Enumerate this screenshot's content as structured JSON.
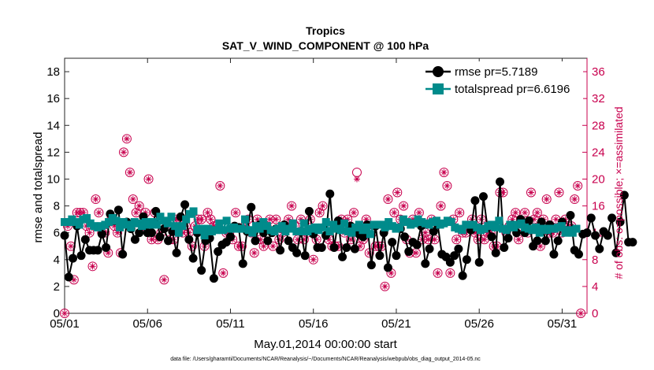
{
  "chart_data": {
    "type": "line",
    "title": "Tropics",
    "subtitle": "SAT_V_WIND_COMPONENT @ 100 hPa",
    "xlabel": "May.01,2014 00:00:00 start",
    "ylabel": "rmse and totalspread",
    "ylabel_right": "# of obs: o=possible; ×=assimilated",
    "xlim": [
      0,
      31.5
    ],
    "ylim": [
      0,
      19
    ],
    "ylim_right": [
      0,
      38
    ],
    "x_ticks": [
      0,
      5,
      10,
      15,
      20,
      25,
      30
    ],
    "x_tick_labels": [
      "05/01",
      "05/06",
      "05/11",
      "05/16",
      "05/21",
      "05/26",
      "05/31"
    ],
    "y_ticks": [
      0,
      2,
      4,
      6,
      8,
      10,
      12,
      14,
      16,
      18
    ],
    "y_tick_labels": [
      "0",
      "2",
      "4",
      "6",
      "8",
      "10",
      "12",
      "14",
      "16",
      "18"
    ],
    "y_right_ticks": [
      0,
      4,
      8,
      12,
      16,
      20,
      24,
      28,
      32,
      36
    ],
    "y_right_tick_labels": [
      "0",
      "4",
      "8",
      "12",
      "16",
      "20",
      "24",
      "28",
      "32",
      "36"
    ],
    "legend_position": "top-right",
    "series": [
      {
        "name": "rmse",
        "legend_label": "rmse pr=5.7189",
        "color": "#000000",
        "marker": "circle",
        "values": [
          5.8,
          2.7,
          4.1,
          6.5,
          4.3,
          5.5,
          4.7,
          4.7,
          4.7,
          5.9,
          4.9,
          7.4,
          6.9,
          7.7,
          4.4,
          6.8,
          6.3,
          5.5,
          6.0,
          7.2,
          6.0,
          6.0,
          7.6,
          5.7,
          6.3,
          5.4,
          6.1,
          4.5,
          7.2,
          8.1,
          5.5,
          4.1,
          6.0,
          3.2,
          5.4,
          5.6,
          2.6,
          4.6,
          5.1,
          5.3,
          5.7,
          6.5,
          6.4,
          3.7,
          6.1,
          7.9,
          5.4,
          6.6,
          6.0,
          5.4,
          6.0,
          6.3,
          4.7,
          6.6,
          5.4,
          4.9,
          4.5,
          6.1,
          4.3,
          7.6,
          5.9,
          4.9,
          4.9,
          5.8,
          8.9,
          4.9,
          6.9,
          4.2,
          4.9,
          6.5,
          4.8,
          5.9,
          5.7,
          6.6,
          3.6,
          6.5,
          4.3,
          6.0,
          3.4,
          5.3,
          4.3,
          6.3,
          5.7,
          4.6,
          5.3,
          5.1,
          6.5,
          3.7,
          4.8,
          6.1,
          6.6,
          4.4,
          4.2,
          3.8,
          4.3,
          4.8,
          2.8,
          4.0,
          6.2,
          8.4,
          3.8,
          8.7,
          6.4,
          5.7,
          4.5,
          9.8,
          4.9,
          5.6,
          6.6,
          6.0,
          7.0,
          6.0,
          6.9,
          5.0,
          5.4,
          6.8,
          5.4,
          6.6,
          4.4,
          5.4,
          6.8,
          6.1,
          7.3,
          4.7,
          4.4,
          5.9,
          6.0,
          7.1,
          5.8,
          4.8,
          6.1,
          5.8,
          7.1,
          4.5,
          6.8,
          8.8,
          5.3,
          5.3
        ],
        "x_start": 0,
        "x_step": 0.25
      },
      {
        "name": "totalspread",
        "legend_label": "totalspread pr=6.6196",
        "color": "#008b8b",
        "marker": "square",
        "values": [
          6.8,
          6.8,
          7.0,
          6.8,
          6.6,
          7.0,
          7.1,
          6.7,
          6.5,
          6.4,
          6.5,
          6.6,
          6.8,
          7.1,
          6.9,
          6.4,
          6.8,
          6.6,
          6.4,
          6.8,
          6.7,
          6.5,
          6.8,
          6.6,
          6.8,
          6.6,
          7.2,
          6.9,
          6.7,
          7.2,
          6.5,
          6.0,
          6.5,
          7.0,
          7.4,
          7.6,
          6.2,
          6.3,
          5.8,
          6.3,
          6.1,
          6.2,
          6.7,
          6.2,
          6.9,
          6.3,
          6.4,
          6.3,
          6.3,
          7.0,
          6.2,
          6.0,
          6.5,
          6.3,
          6.8,
          6.5,
          6.2,
          6.1,
          6.3,
          6.5,
          6.1,
          6.3,
          6.7,
          6.1,
          6.1,
          6.7,
          6.1,
          6.3,
          6.4,
          6.2,
          6.4,
          6.8,
          6.1,
          6.6,
          6.3,
          6.2,
          6.7,
          6.1,
          6.0,
          6.4,
          6.6,
          6.2,
          6.4,
          5.9,
          6.6,
          6.6,
          6.6,
          6.4,
          6.8,
          6.5,
          6.3,
          6.4,
          7.0,
          6.8,
          6.6,
          6.7,
          7.0,
          6.8,
          6.7,
          6.6,
          6.8,
          6.9,
          6.6,
          6.7,
          6.9,
          6.8,
          6.4,
          6.3,
          6.2,
          6.6,
          6.6,
          6.6,
          6.4,
          6.2,
          6.3,
          6.5,
          6.6,
          6.4,
          6.9,
          6.3,
          6.2,
          6.6,
          6.4,
          6.6,
          6.7,
          6.4,
          6.3,
          6.2,
          6.4,
          6.0,
          6.3,
          6.2,
          6.3,
          6.3,
          6.4,
          6.5,
          6.0,
          6.2,
          6.0,
          6.3
        ],
        "x_start": 0,
        "x_step": 0.222
      }
    ],
    "obs_possible": {
      "name": "possible",
      "marker": "circle",
      "color": "#c8004e",
      "values": [
        0,
        13,
        10,
        5,
        15,
        15,
        15,
        13,
        12,
        7,
        17,
        15,
        12,
        12,
        9,
        14,
        13,
        12,
        9,
        24,
        26,
        21,
        17,
        15,
        16,
        13,
        15,
        20,
        11,
        15,
        11,
        12,
        5,
        13,
        11,
        11,
        14,
        14,
        12,
        13,
        12,
        10,
        13,
        14,
        14,
        10,
        15,
        14,
        13,
        13,
        19,
        6,
        12,
        12,
        11,
        15,
        10,
        10,
        13,
        14,
        12,
        9,
        14,
        11,
        10,
        13,
        14,
        10,
        14,
        11,
        12,
        13,
        14,
        16,
        13,
        11,
        14,
        11,
        12,
        14,
        8,
        11,
        15,
        16,
        13,
        11,
        10,
        10,
        10,
        14,
        12,
        14,
        11,
        15,
        21,
        10,
        11,
        14,
        9,
        12,
        10,
        10,
        10,
        4,
        17,
        6,
        15,
        18,
        14,
        16,
        11,
        9,
        14,
        9,
        15,
        11,
        12,
        11,
        14,
        11,
        6,
        16,
        21,
        19,
        6,
        14,
        11,
        15,
        12,
        12,
        13,
        14,
        12,
        11,
        14,
        11,
        12,
        12,
        10,
        10,
        18,
        18,
        12,
        13,
        14,
        15,
        11,
        13,
        15,
        12,
        18,
        14,
        15,
        10,
        14,
        17,
        12,
        12,
        14,
        18,
        12,
        14,
        13,
        13,
        17,
        19,
        0
      ],
      "x_start": 0,
      "x_step": 0.1875
    },
    "obs_assimilated": {
      "name": "assimilated",
      "marker": "asterisk",
      "color": "#c8004e",
      "values": [
        0,
        13,
        10,
        5,
        15,
        15,
        15,
        13,
        12,
        7,
        17,
        15,
        12,
        12,
        9,
        14,
        13,
        12,
        9,
        24,
        26,
        21,
        17,
        15,
        16,
        13,
        15,
        20,
        11,
        15,
        11,
        12,
        5,
        13,
        11,
        11,
        14,
        14,
        12,
        13,
        12,
        10,
        13,
        14,
        14,
        10,
        15,
        14,
        13,
        13,
        19,
        6,
        12,
        12,
        11,
        15,
        10,
        10,
        13,
        14,
        12,
        9,
        14,
        11,
        10,
        13,
        14,
        10,
        14,
        11,
        12,
        13,
        14,
        16,
        13,
        11,
        14,
        11,
        12,
        14,
        8,
        11,
        15,
        16,
        13,
        11,
        10,
        10,
        10,
        14,
        12,
        14,
        11,
        15,
        20,
        10,
        11,
        14,
        9,
        12,
        10,
        10,
        10,
        4,
        17,
        6,
        15,
        18,
        14,
        16,
        11,
        9,
        14,
        9,
        15,
        11,
        12,
        11,
        14,
        11,
        6,
        16,
        21,
        19,
        6,
        14,
        11,
        15,
        12,
        12,
        13,
        14,
        12,
        11,
        14,
        11,
        12,
        12,
        10,
        10,
        18,
        18,
        12,
        13,
        14,
        15,
        11,
        13,
        15,
        12,
        18,
        14,
        15,
        10,
        14,
        17,
        12,
        12,
        14,
        18,
        12,
        14,
        13,
        13,
        17,
        19,
        0
      ],
      "x_start": 0,
      "x_step": 0.1875
    },
    "footnote": "data file: /Users/gharamti/Documents/NCAR/Reanalysis/~/Documents/NCAR/Reanalysis/webpub/obs_diag_output_2014-05.nc"
  }
}
